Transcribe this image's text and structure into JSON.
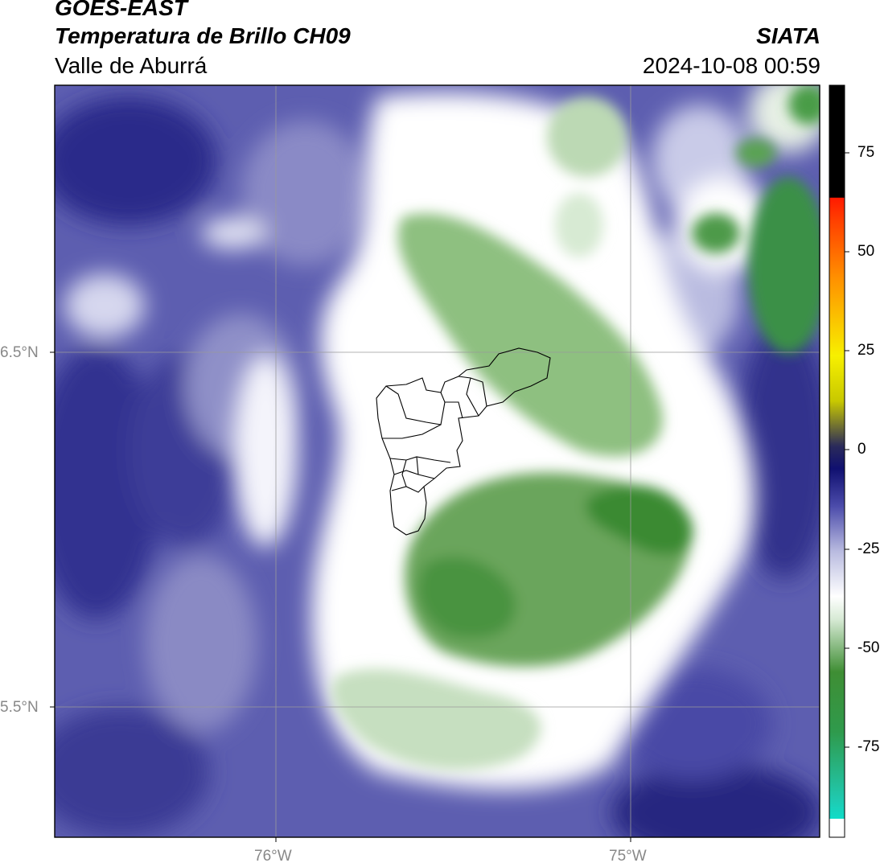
{
  "header": {
    "satellite": "GOES-EAST",
    "product": "Temperatura de Brillo CH09",
    "region": "Valle de Aburrá",
    "source": "SIATA",
    "datetime": "2024-10-08 00:59"
  },
  "axes": {
    "lat_labels": [
      "6.5°N",
      "5.5°N"
    ],
    "lon_labels": [
      "76°W",
      "75°W"
    ]
  },
  "colorbar": {
    "tick_labels": [
      "75",
      "50",
      "25",
      "0",
      "-25",
      "-50",
      "-75"
    ],
    "colors": {
      "cyan": "#00e5d8",
      "green": "#3f8e34",
      "white": "#ffffff",
      "navy": "#1a1a78",
      "yellow": "#f7f000",
      "orange": "#ff9400",
      "red": "#ff1a00",
      "black": "#000000"
    }
  }
}
